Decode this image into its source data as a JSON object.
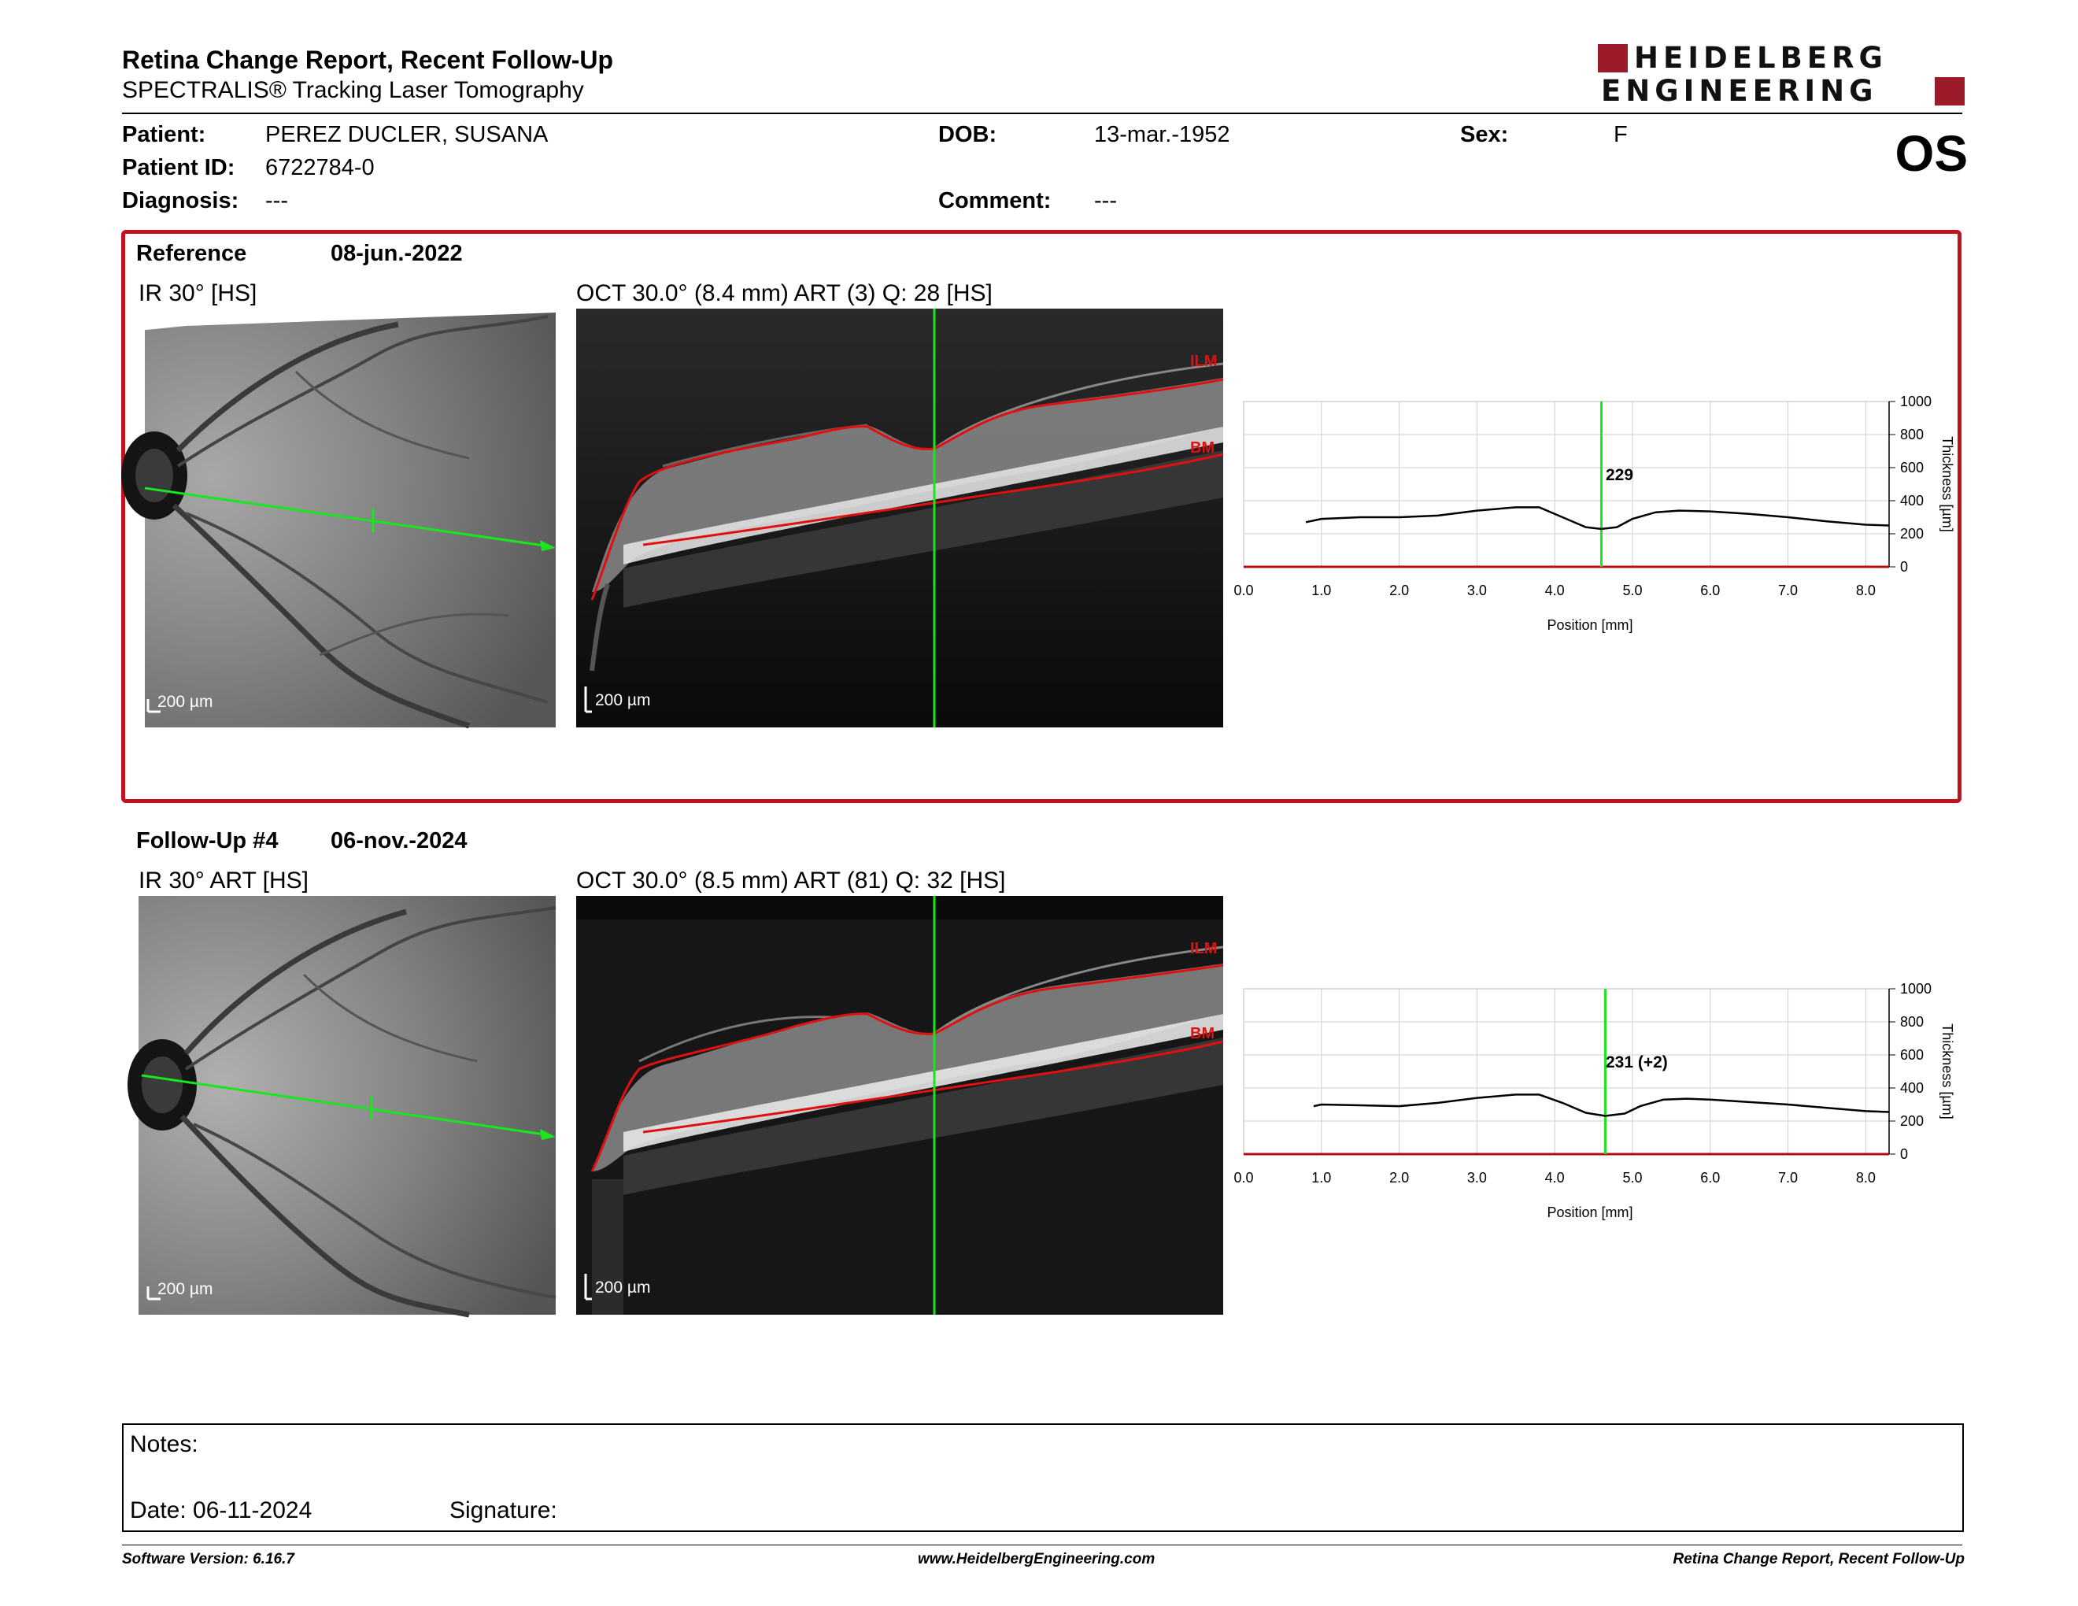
{
  "header": {
    "title": "Retina Change Report, Recent Follow-Up",
    "subtitle": "SPECTRALIS® Tracking Laser Tomography",
    "logo_line1": "HEIDELBERG",
    "logo_line2": "ENGINEERING",
    "eye": "OS"
  },
  "patient": {
    "patient_label": "Patient:",
    "patient_value": "PEREZ DUCLER, SUSANA",
    "id_label": "Patient ID:",
    "id_value": "6722784-0",
    "diagnosis_label": "Diagnosis:",
    "diagnosis_value": "---",
    "dob_label": "DOB:",
    "dob_value": "13-mar.-1952",
    "comment_label": "Comment:",
    "comment_value": "---",
    "sex_label": "Sex:",
    "sex_value": "F"
  },
  "reference": {
    "label": "Reference",
    "date": "08-jun.-2022",
    "ir_title": "IR 30° [HS]",
    "oct_title": "OCT 30.0° (8.4 mm) ART (3) Q: 28 [HS]",
    "ir_scale": "200 µm",
    "oct_scale": "200 µm",
    "ilm": "ILM",
    "bm": "BM",
    "marker_label": "229"
  },
  "followup": {
    "label": "Follow-Up #4",
    "date": "06-nov.-2024",
    "ir_title": "IR 30° ART [HS]",
    "oct_title": "OCT 30.0° (8.5 mm) ART (81) Q: 32 [HS]",
    "ir_scale": "200 µm",
    "oct_scale": "200 µm",
    "ilm": "ILM",
    "bm": "BM",
    "marker_label": "231 (+2)"
  },
  "chart_data": [
    {
      "type": "line",
      "title": "",
      "xlabel": "Position [mm]",
      "ylabel": "Thickness [µm]",
      "xlim": [
        0,
        8.3
      ],
      "ylim": [
        0,
        1000
      ],
      "xticks": [
        "0.0",
        "1.0",
        "2.0",
        "3.0",
        "4.0",
        "5.0",
        "6.0",
        "7.0",
        "8.0"
      ],
      "yticks": [
        "0",
        "200",
        "400",
        "600",
        "800",
        "1000"
      ],
      "marker_x": 4.6,
      "series": [
        {
          "x": [
            0.8,
            1.0,
            1.5,
            2.0,
            2.5,
            3.0,
            3.5,
            3.8,
            4.1,
            4.4,
            4.6,
            4.8,
            5.0,
            5.3,
            5.6,
            6.0,
            6.5,
            7.0,
            7.5,
            8.0,
            8.3
          ],
          "y": [
            270,
            290,
            300,
            300,
            310,
            340,
            360,
            360,
            300,
            240,
            229,
            240,
            290,
            330,
            340,
            335,
            320,
            300,
            275,
            255,
            250
          ]
        }
      ]
    },
    {
      "type": "line",
      "title": "",
      "xlabel": "Position [mm]",
      "ylabel": "Thickness [µm]",
      "xlim": [
        0,
        8.3
      ],
      "ylim": [
        0,
        1000
      ],
      "xticks": [
        "0.0",
        "1.0",
        "2.0",
        "3.0",
        "4.0",
        "5.0",
        "6.0",
        "7.0",
        "8.0"
      ],
      "yticks": [
        "0",
        "200",
        "400",
        "600",
        "800",
        "1000"
      ],
      "marker_x": 4.65,
      "series": [
        {
          "x": [
            0.9,
            1.0,
            1.5,
            2.0,
            2.5,
            3.0,
            3.5,
            3.8,
            4.1,
            4.4,
            4.65,
            4.9,
            5.1,
            5.4,
            5.7,
            6.0,
            6.5,
            7.0,
            7.5,
            8.0,
            8.3
          ],
          "y": [
            290,
            300,
            295,
            290,
            310,
            340,
            360,
            360,
            310,
            250,
            231,
            245,
            290,
            330,
            335,
            330,
            315,
            300,
            280,
            260,
            255
          ]
        }
      ]
    }
  ],
  "notes": {
    "label": "Notes:",
    "date_label": "Date: 06-11-2024",
    "signature_label": "Signature:"
  },
  "footer": {
    "left": "Software Version: 6.16.7",
    "center": "www.HeidelbergEngineering.com",
    "right": "Retina Change Report, Recent Follow-Up"
  }
}
